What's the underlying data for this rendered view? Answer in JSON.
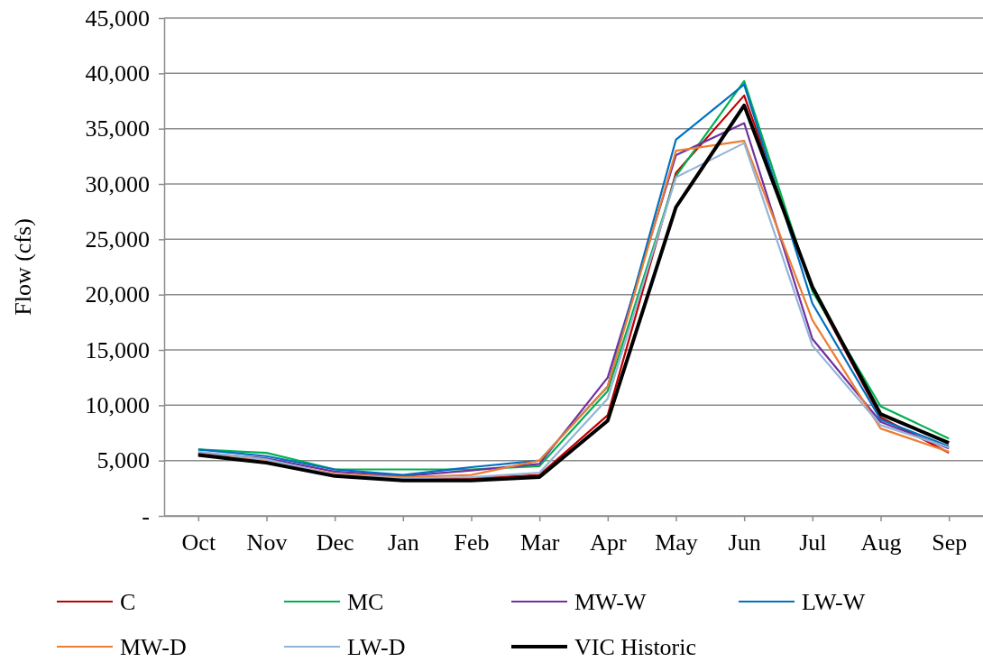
{
  "chart_data": {
    "type": "line",
    "ylabel": "Flow (cfs)",
    "categories": [
      "Oct",
      "Nov",
      "Dec",
      "Jan",
      "Feb",
      "Mar",
      "Apr",
      "May",
      "Jun",
      "Jul",
      "Aug",
      "Sep"
    ],
    "ylim": [
      0,
      45000
    ],
    "yticks": [
      {
        "value": 0,
        "label": "-"
      },
      {
        "value": 5000,
        "label": "5,000"
      },
      {
        "value": 10000,
        "label": "10,000"
      },
      {
        "value": 15000,
        "label": "15,000"
      },
      {
        "value": 20000,
        "label": "20,000"
      },
      {
        "value": 25000,
        "label": "25,000"
      },
      {
        "value": 30000,
        "label": "30,000"
      },
      {
        "value": 35000,
        "label": "35,000"
      },
      {
        "value": 40000,
        "label": "40,000"
      },
      {
        "value": 45000,
        "label": "45,000"
      }
    ],
    "grid": "y",
    "legend": "bottom",
    "marker": "none",
    "line_style": "solid",
    "series": [
      {
        "name": "C",
        "color": "#c00000",
        "values": [
          5600,
          5000,
          3600,
          3300,
          3400,
          3700,
          9100,
          31000,
          38000,
          20500,
          8900,
          5700
        ]
      },
      {
        "name": "MC",
        "color": "#00b050",
        "values": [
          6000,
          5700,
          4200,
          4200,
          4200,
          4500,
          11300,
          30700,
          39300,
          20300,
          9900,
          7000
        ]
      },
      {
        "name": "MW-W",
        "color": "#7030a0",
        "values": [
          5700,
          5200,
          4000,
          3600,
          4100,
          4700,
          12500,
          32600,
          35500,
          16000,
          8500,
          6100
        ]
      },
      {
        "name": "LW-W",
        "color": "#0070c0",
        "values": [
          6000,
          5400,
          4200,
          3700,
          4400,
          5000,
          11700,
          34000,
          39000,
          19200,
          8700,
          6300
        ]
      },
      {
        "name": "MW-D",
        "color": "#ed7d31",
        "values": [
          5600,
          5000,
          3800,
          3500,
          3700,
          5000,
          11700,
          33000,
          33900,
          17700,
          7900,
          5800
        ]
      },
      {
        "name": "LW-D",
        "color": "#95b3d7",
        "values": [
          5800,
          5100,
          3700,
          3400,
          3500,
          3900,
          10600,
          30600,
          33700,
          15400,
          8200,
          6200
        ]
      },
      {
        "name": "VIC Historic",
        "color": "#000000",
        "values": [
          5500,
          4800,
          3600,
          3200,
          3200,
          3500,
          8600,
          27900,
          37100,
          20700,
          9200,
          6600
        ]
      }
    ]
  }
}
